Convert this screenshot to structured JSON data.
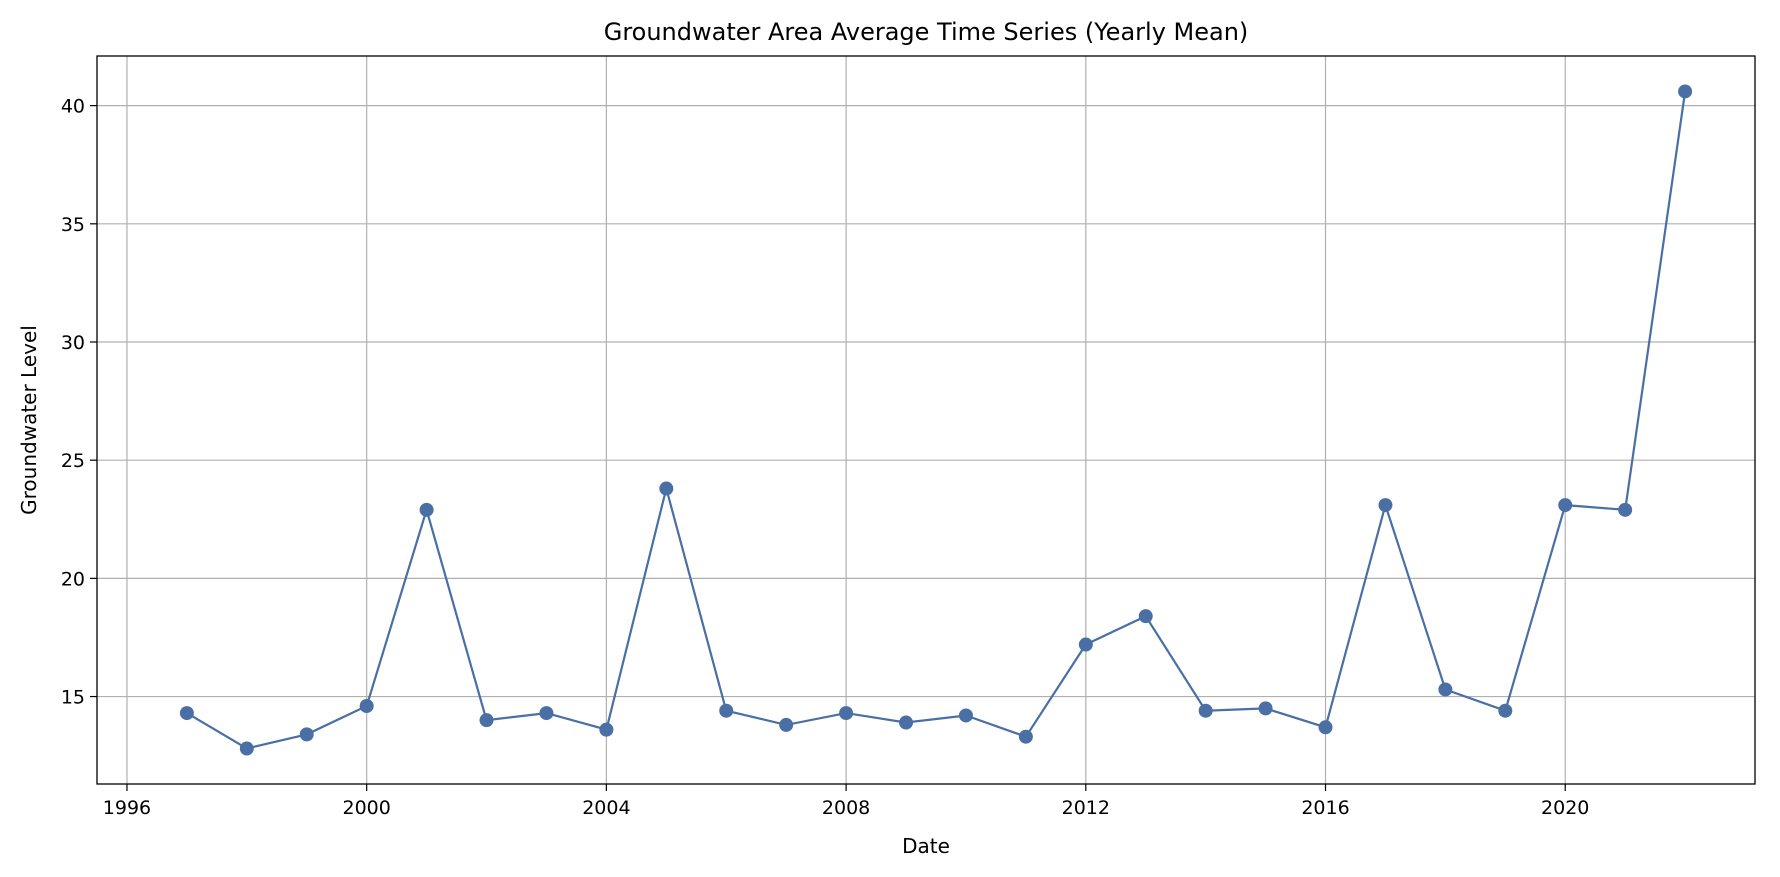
{
  "chart_data": {
    "type": "line",
    "title": "Groundwater Area Average Time Series (Yearly Mean)",
    "xlabel": "Date",
    "ylabel": "Groundwater Level",
    "x_ticks": [
      "1996",
      "2000",
      "2004",
      "2008",
      "2012",
      "2016",
      "2020"
    ],
    "y_ticks": [
      "15",
      "20",
      "25",
      "30",
      "35",
      "40"
    ],
    "xlim": [
      "1995-07",
      "2023-03"
    ],
    "ylim": [
      11.3,
      42.1
    ],
    "grid": true,
    "line_color": "#4a6fa5",
    "marker": "circle",
    "series": [
      {
        "x": [
          "1997",
          "1998",
          "1999",
          "2000",
          "2001",
          "2002",
          "2003",
          "2004",
          "2005",
          "2006",
          "2007",
          "2008",
          "2009",
          "2010",
          "2011",
          "2012",
          "2013",
          "2014",
          "2015",
          "2016",
          "2017",
          "2018",
          "2019",
          "2020",
          "2021",
          "2022"
        ],
        "values": [
          14.3,
          12.8,
          13.4,
          14.6,
          22.9,
          14.0,
          14.3,
          13.6,
          23.8,
          14.4,
          13.8,
          14.3,
          13.9,
          14.2,
          13.3,
          17.2,
          18.4,
          14.4,
          14.5,
          13.7,
          23.1,
          15.3,
          14.4,
          23.1,
          22.9,
          40.6
        ]
      }
    ]
  }
}
